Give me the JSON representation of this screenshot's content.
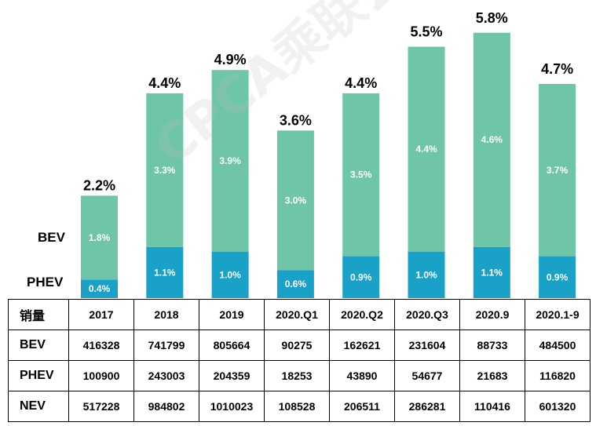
{
  "chart_data": {
    "type": "bar",
    "stacked": true,
    "categories": [
      "2017",
      "2018",
      "2019",
      "2020.Q1",
      "2020.Q2",
      "2020.Q3",
      "2020.9",
      "2020.1-9"
    ],
    "series": [
      {
        "name": "PHEV",
        "values": [
          0.4,
          1.1,
          1.0,
          0.6,
          0.9,
          1.0,
          1.1,
          0.9
        ],
        "labels": [
          "0.4%",
          "1.1%",
          "1.0%",
          "0.6%",
          "0.9%",
          "1.0%",
          "1.1%",
          "0.9%"
        ],
        "color": "#1aa1c8"
      },
      {
        "name": "BEV",
        "values": [
          1.8,
          3.3,
          3.9,
          3.0,
          3.5,
          4.4,
          4.6,
          3.7
        ],
        "labels": [
          "1.8%",
          "3.3%",
          "3.9%",
          "3.0%",
          "3.5%",
          "4.4%",
          "4.6%",
          "3.7%"
        ],
        "color": "#6fc5a7"
      }
    ],
    "totals": [
      2.2,
      4.4,
      4.9,
      3.6,
      4.4,
      5.5,
      5.8,
      4.7
    ],
    "total_labels": [
      "2.2%",
      "4.4%",
      "4.9%",
      "3.6%",
      "4.4%",
      "5.5%",
      "5.8%",
      "4.7%"
    ],
    "ylim": [
      0,
      6.1
    ],
    "grid": false,
    "legend": [
      "BEV",
      "PHEV"
    ],
    "legend_placement": "left",
    "watermark": "CPCA乘联会"
  },
  "table": {
    "header_label": "销量",
    "columns": [
      "2017",
      "2018",
      "2019",
      "2020.Q1",
      "2020.Q2",
      "2020.Q3",
      "2020.9",
      "2020.1-9"
    ],
    "rows": [
      {
        "label": "BEV",
        "values": [
          "416328",
          "741799",
          "805664",
          "90275",
          "162621",
          "231604",
          "88733",
          "484500"
        ]
      },
      {
        "label": "PHEV",
        "values": [
          "100900",
          "243003",
          "204359",
          "18253",
          "43890",
          "54677",
          "21683",
          "116820"
        ]
      },
      {
        "label": "NEV",
        "values": [
          "517228",
          "984802",
          "1010023",
          "108528",
          "206511",
          "286281",
          "110416",
          "601320"
        ]
      }
    ]
  }
}
